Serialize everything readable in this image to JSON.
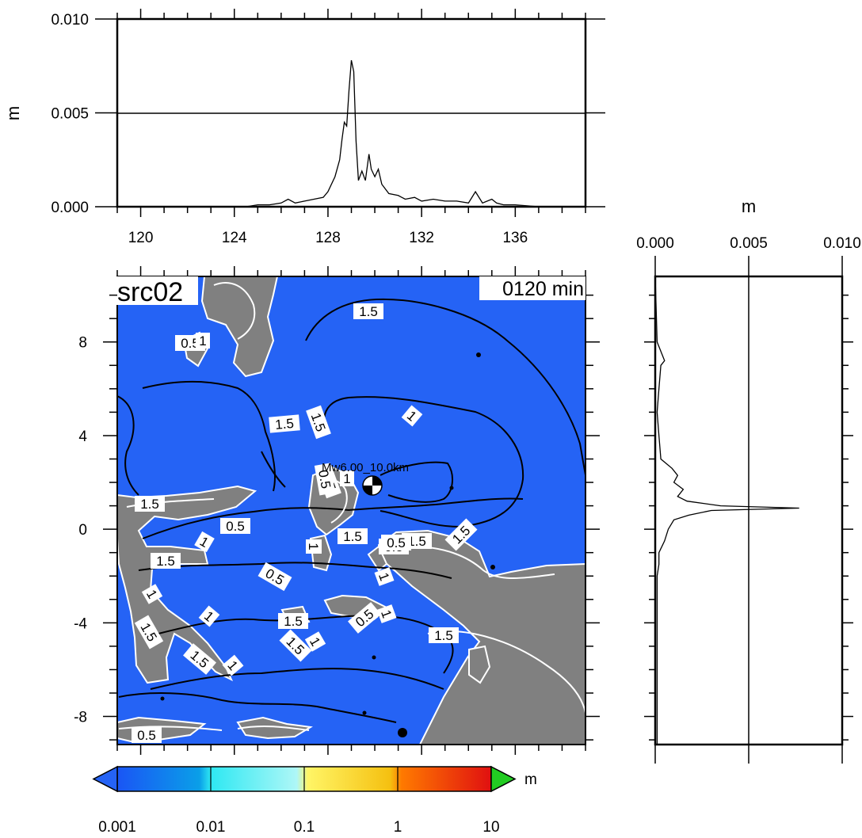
{
  "map": {
    "source_label": "src02",
    "time_label": "0120 min",
    "epicenter_label": "Mw6.00_10.0km",
    "colors": {
      "ocean": "#2563f5",
      "land": "#808080",
      "black_contour": "#000000",
      "white_contour": "#ffffff"
    },
    "x_ticks": [
      "120",
      "124",
      "128",
      "132",
      "136"
    ],
    "y_ticks": [
      "8",
      "4",
      "0",
      "-4",
      "-8"
    ],
    "contour_labels": [
      {
        "text": "1.5",
        "kind": "map-contour"
      },
      {
        "text": "1",
        "kind": "map-contour"
      },
      {
        "text": "1.5",
        "kind": "map-contour"
      },
      {
        "text": "1.5",
        "kind": "map-contour"
      },
      {
        "text": "0.5",
        "kind": "map-contour"
      },
      {
        "text": "1",
        "kind": "map-contour"
      },
      {
        "text": "1.5",
        "kind": "map-contour"
      },
      {
        "text": "0.5",
        "kind": "map-contour"
      },
      {
        "text": "1",
        "kind": "map-contour"
      },
      {
        "text": "1.5",
        "kind": "map-contour"
      },
      {
        "text": "1.5",
        "kind": "map-contour"
      },
      {
        "text": "1",
        "kind": "map-contour"
      },
      {
        "text": "0.5",
        "kind": "map-contour"
      },
      {
        "text": "1.5",
        "kind": "map-contour"
      },
      {
        "text": "1.5",
        "kind": "map-contour"
      },
      {
        "text": "1",
        "kind": "map-contour"
      },
      {
        "text": "0.5",
        "kind": "map-contour"
      },
      {
        "text": "1",
        "kind": "map-contour"
      },
      {
        "text": "1.5",
        "kind": "map-contour"
      },
      {
        "text": "1",
        "kind": "map-contour"
      },
      {
        "text": "1.5",
        "kind": "map-contour"
      },
      {
        "text": "1",
        "kind": "map-contour"
      },
      {
        "text": "1.5",
        "kind": "map-contour"
      },
      {
        "text": "1",
        "kind": "map-contour"
      },
      {
        "text": "1.5",
        "kind": "map-contour"
      },
      {
        "text": "0.5",
        "kind": "map-contour"
      },
      {
        "text": "1",
        "kind": "map-contour"
      },
      {
        "text": "1.5",
        "kind": "map-contour"
      },
      {
        "text": "0.5",
        "kind": "map-contour"
      },
      {
        "text": "1",
        "kind": "map-contour"
      },
      {
        "text": "0.5",
        "kind": "map-contour"
      },
      {
        "text": "0.5",
        "kind": "map-contour"
      },
      {
        "text": "0.5",
        "kind": "map-contour"
      }
    ]
  },
  "top_profile": {
    "ylabel": "m",
    "y_ticks": [
      "0.010",
      "0.005",
      "0.000"
    ],
    "x_ticks": [
      "120",
      "124",
      "128",
      "132",
      "136"
    ],
    "data": {
      "x_deg": [
        124.5,
        125.0,
        125.5,
        126.0,
        126.3,
        126.6,
        127.0,
        127.4,
        127.8,
        128.0,
        128.3,
        128.5,
        128.6,
        128.7,
        128.8,
        128.9,
        129.0,
        129.1,
        129.2,
        129.3,
        129.45,
        129.6,
        129.75,
        129.85,
        130.0,
        130.15,
        130.3,
        130.6,
        131.0,
        131.3,
        131.7,
        132.0,
        132.5,
        133.0,
        133.5,
        134.0,
        134.3,
        134.6,
        135.0,
        135.2,
        135.5,
        136.0,
        137.0
      ],
      "height_m": [
        0.0,
        0.0001,
        0.0001,
        0.0002,
        0.0004,
        0.0002,
        0.0003,
        0.0004,
        0.0005,
        0.0008,
        0.0016,
        0.0025,
        0.0036,
        0.0045,
        0.0043,
        0.0062,
        0.0078,
        0.0072,
        0.0035,
        0.0014,
        0.0019,
        0.0014,
        0.0028,
        0.002,
        0.0016,
        0.002,
        0.0012,
        0.0007,
        0.0006,
        0.0004,
        0.0005,
        0.0003,
        0.0004,
        0.0003,
        0.0003,
        0.0002,
        0.0008,
        0.0002,
        0.0004,
        0.0002,
        0.0001,
        0.0001,
        0.0
      ]
    }
  },
  "right_profile": {
    "xlabel": "m",
    "x_ticks": [
      "0.000",
      "0.005",
      "0.010"
    ],
    "data": {
      "y_deg": [
        8.0,
        7.2,
        7.0,
        6.0,
        5.0,
        4.0,
        3.0,
        2.6,
        2.3,
        2.0,
        1.7,
        1.4,
        1.2,
        1.0,
        0.9,
        0.8,
        0.6,
        0.4,
        0.0,
        -0.5,
        -1.0,
        -1.5,
        -2.0,
        -3.0,
        -4.0,
        -6.0,
        -8.0
      ],
      "height_m": [
        0.0001,
        0.0005,
        0.0003,
        0.0002,
        0.0001,
        0.0002,
        0.0003,
        0.0009,
        0.0012,
        0.001,
        0.0015,
        0.0012,
        0.0017,
        0.0035,
        0.0077,
        0.003,
        0.0018,
        0.001,
        0.0007,
        0.0005,
        0.0002,
        0.0002,
        0.0001,
        0.0001,
        0.0001,
        0.0001,
        0.0001
      ]
    }
  },
  "colorbar": {
    "unit": "m",
    "tick_labels": [
      "0.001",
      "0.01",
      "0.1",
      "1",
      "10"
    ],
    "colors": {
      "under": "#2563f5",
      "over": "#22cc22",
      "stops": [
        "#1a55f5",
        "#0a9fe8",
        "#2ee8f2",
        "#aef7f7",
        "#fff566",
        "#f5c010",
        "#ff7a00",
        "#f52a0c",
        "#e01010"
      ]
    }
  }
}
